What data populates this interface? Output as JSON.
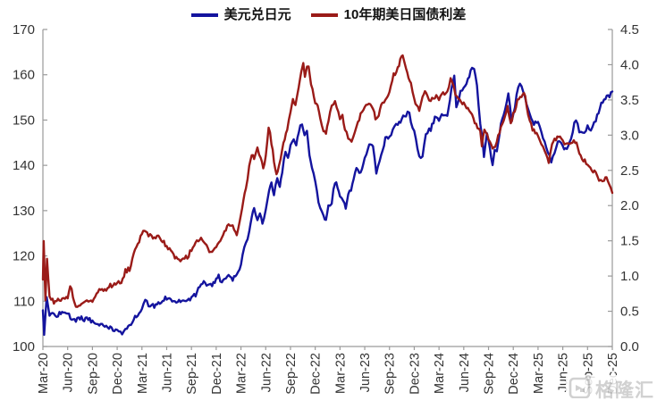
{
  "legend": {
    "items": [
      {
        "label": "美元兑日元",
        "color": "#14149E"
      },
      {
        "label": "10年期美日国债利差",
        "color": "#9A1B18"
      }
    ]
  },
  "watermark": {
    "text": "格隆汇",
    "icon": "gelonghui-logo-icon"
  },
  "chart_data": {
    "type": "line",
    "title": "",
    "grid": false,
    "legend_position": "top-center",
    "x_axis": {
      "unit": "months since Mar-2020",
      "tick_months": [
        0,
        3,
        6,
        9,
        12,
        15,
        18,
        21,
        24,
        27,
        30,
        33,
        36,
        39,
        42,
        45,
        48,
        51,
        54,
        57,
        60,
        63,
        66,
        69
      ],
      "tick_labels": [
        "Mar-20",
        "Jun-20",
        "Sep-20",
        "Dec-20",
        "Mar-21",
        "Jun-21",
        "Sep-21",
        "Dec-21",
        "Mar-22",
        "Jun-22",
        "Sep-22",
        "Dec-22",
        "Mar-23",
        "Jun-23",
        "Sep-23",
        "Dec-23",
        "Mar-24",
        "Jun-24",
        "Sep-24",
        "Dec-24",
        "Mar-25",
        "Jun-25",
        "Sep-25",
        "Dec-25"
      ]
    },
    "y_axis_left": {
      "min": 100,
      "max": 170,
      "step": 10,
      "tick_labels": [
        "100",
        "110",
        "120",
        "130",
        "140",
        "150",
        "160",
        "170"
      ],
      "series": "美元兑日元"
    },
    "y_axis_right": {
      "min": 0,
      "max": 4.5,
      "step": 0.5,
      "tick_labels": [
        "0.0",
        "0.5",
        "1.0",
        "1.5",
        "2.0",
        "2.5",
        "3.0",
        "3.5",
        "4.0",
        "4.5"
      ],
      "series": "10年期美日国债利差"
    },
    "series": [
      {
        "name": "美元兑日元",
        "color": "#14149E",
        "axis": "left",
        "x_months": [
          0,
          0.15,
          0.45,
          0.8,
          1,
          1.5,
          2,
          2.5,
          3,
          3.5,
          4,
          4.5,
          5,
          5.5,
          6,
          6.5,
          7,
          7.5,
          8,
          8.5,
          9,
          9.6,
          10,
          10.5,
          11,
          11.5,
          12,
          12.4,
          12.8,
          13,
          13.5,
          14,
          14.5,
          15,
          15.5,
          16,
          16.5,
          17,
          17.5,
          18,
          18.5,
          19,
          19.5,
          20,
          20.5,
          21,
          21.3,
          21.7,
          22,
          22.5,
          23,
          23.5,
          24,
          24.4,
          24.8,
          25,
          25.3,
          25.6,
          26,
          26.3,
          26.6,
          27,
          27.4,
          27.7,
          28,
          28.4,
          28.7,
          29,
          29.4,
          29.7,
          30,
          30.4,
          30.7,
          31,
          31.4,
          31.7,
          32,
          32.3,
          32.6,
          33,
          33.4,
          34,
          34.3,
          34.6,
          35,
          35.4,
          35.7,
          36,
          36.4,
          36.7,
          37,
          37.5,
          38,
          38.5,
          39,
          39.4,
          39.7,
          40,
          40.4,
          40.8,
          41,
          41.5,
          42,
          42.4,
          43,
          43.5,
          44,
          44.4,
          44.8,
          45,
          45.4,
          45.8,
          46,
          46.4,
          46.8,
          47,
          47.5,
          48,
          48.5,
          49,
          49.5,
          49.85,
          50.1,
          50.6,
          51,
          51.5,
          52,
          52.25,
          52.6,
          53,
          53.3,
          53.45,
          53.8,
          54,
          54.5,
          54.75,
          55,
          55.5,
          56,
          56.4,
          56.8,
          57,
          57.6,
          58,
          58.4,
          59,
          59.5,
          60,
          60.4,
          61,
          61.6,
          62,
          62.4,
          63,
          63.5,
          64,
          64.6,
          65,
          65.4,
          66,
          66.4,
          67,
          67.5,
          68,
          68.5,
          69
        ],
        "values": [
          108,
          102.9,
          111,
          107,
          107.7,
          106.5,
          107.3,
          107.8,
          107.4,
          106.1,
          105.9,
          106.3,
          105.9,
          106.2,
          105.5,
          105.3,
          104.7,
          104.5,
          104.3,
          103.8,
          103.5,
          102.8,
          103.8,
          104.6,
          106.2,
          107,
          108.7,
          110.3,
          109.2,
          109.3,
          108.8,
          109.5,
          110,
          110.8,
          110.5,
          109.5,
          110.2,
          109.9,
          109.8,
          111,
          111.5,
          113.5,
          114.2,
          113.2,
          113.8,
          114.8,
          115.5,
          113.8,
          114.7,
          115.5,
          114.9,
          116.2,
          118,
          121.8,
          123.9,
          125.5,
          128.9,
          130.2,
          127.5,
          129.5,
          127.2,
          130,
          134.5,
          136.2,
          133.2,
          137.5,
          135,
          138.8,
          143,
          141.5,
          144,
          145.5,
          144,
          147.5,
          149.4,
          146.5,
          148,
          142,
          139.5,
          136.5,
          132,
          128.8,
          128.2,
          131,
          132,
          136.5,
          135,
          133.5,
          132,
          130.8,
          133.5,
          135.5,
          139.5,
          138.2,
          141.8,
          143.8,
          145,
          144.5,
          138.3,
          141.2,
          142.5,
          145.8,
          146.2,
          147.8,
          149.2,
          150.2,
          151.2,
          151.6,
          148,
          147.2,
          143.8,
          141.2,
          142,
          146.8,
          148.2,
          148,
          150.3,
          150.2,
          151.5,
          151.4,
          156.5,
          160.2,
          153.2,
          156,
          157.3,
          159,
          161.2,
          161.7,
          157.3,
          149.5,
          144.5,
          141.7,
          147.2,
          145.3,
          140,
          143.5,
          143,
          149.3,
          152,
          156.3,
          149.8,
          151,
          157.3,
          157.9,
          155,
          151,
          149.2,
          149.8,
          147.5,
          143.5,
          140.9,
          142.8,
          145.6,
          144.2,
          143.6,
          146,
          150.4,
          147.3,
          147,
          148.5,
          147.2,
          150,
          152.8,
          154.8,
          155,
          156.3
        ]
      },
      {
        "name": "10年期美日国债利差",
        "color": "#9A1B18",
        "axis": "right",
        "x_months": [
          0,
          0.1,
          0.3,
          0.5,
          0.8,
          1,
          1.5,
          2,
          3,
          3.3,
          4,
          4.5,
          5,
          6,
          6.5,
          7,
          7.5,
          8,
          9,
          9.5,
          10,
          10.5,
          11,
          11.5,
          12,
          12.3,
          12.8,
          13,
          13.5,
          14,
          14.5,
          15,
          15.5,
          16,
          16.5,
          17,
          17.5,
          18,
          18.5,
          19,
          19.5,
          20,
          20.5,
          21,
          21.5,
          22,
          22.5,
          23,
          23.5,
          24,
          24.3,
          24.6,
          25,
          25.3,
          25.6,
          26,
          26.4,
          26.7,
          27,
          27.35,
          27.7,
          28,
          28.3,
          28.6,
          29,
          29.3,
          29.6,
          30,
          30.3,
          30.6,
          31,
          31.3,
          31.55,
          31.75,
          32,
          32.2,
          32.5,
          33,
          33.3,
          33.6,
          34,
          34.3,
          34.6,
          35,
          35.4,
          36,
          36.3,
          36.6,
          37,
          37.4,
          37.8,
          38,
          38.5,
          39,
          39.5,
          40,
          40.3,
          40.7,
          41,
          41.5,
          42,
          42.5,
          43,
          43.3,
          43.6,
          44,
          44.3,
          44.6,
          45,
          45.3,
          45.6,
          46,
          46.3,
          46.6,
          47,
          47.5,
          48,
          48.5,
          49,
          49.4,
          49.8,
          50,
          50.5,
          51,
          51.5,
          52,
          52.5,
          53,
          53.2,
          53.5,
          54,
          54.5,
          54.8,
          55,
          55.5,
          56,
          56.3,
          56.7,
          57,
          57.5,
          58,
          58.3,
          58.6,
          59,
          59.5,
          60,
          60.4,
          61,
          61.3,
          61.7,
          62,
          62.5,
          63,
          63.4,
          64,
          64.5,
          65,
          65.5,
          66,
          66.5,
          67,
          67.4,
          68,
          68.3,
          68.6,
          69
        ],
        "values": [
          0.95,
          1.48,
          0.68,
          1.24,
          0.7,
          0.66,
          0.62,
          0.67,
          0.7,
          0.86,
          0.57,
          0.55,
          0.66,
          0.66,
          0.72,
          0.82,
          0.8,
          0.86,
          0.9,
          0.93,
          1.07,
          1.1,
          1.34,
          1.45,
          1.6,
          1.67,
          1.57,
          1.6,
          1.52,
          1.55,
          1.5,
          1.42,
          1.35,
          1.25,
          1.22,
          1.28,
          1.26,
          1.38,
          1.47,
          1.52,
          1.5,
          1.38,
          1.35,
          1.42,
          1.48,
          1.65,
          1.72,
          1.75,
          1.55,
          1.85,
          2.1,
          2.25,
          2.55,
          2.72,
          2.65,
          2.8,
          2.68,
          2.52,
          2.72,
          3.12,
          2.9,
          2.62,
          2.42,
          2.55,
          2.78,
          2.95,
          3.08,
          3.3,
          3.52,
          3.45,
          3.7,
          3.88,
          4.0,
          3.82,
          3.95,
          3.98,
          3.7,
          3.48,
          3.42,
          3.25,
          3.05,
          3.02,
          3.22,
          3.42,
          3.45,
          3.25,
          3.3,
          3.08,
          2.98,
          2.92,
          3.05,
          3.15,
          3.28,
          3.4,
          3.45,
          3.38,
          3.22,
          3.3,
          3.42,
          3.48,
          3.6,
          3.85,
          3.95,
          4.05,
          4.13,
          3.95,
          3.8,
          3.72,
          3.55,
          3.4,
          3.35,
          3.52,
          3.62,
          3.55,
          3.48,
          3.55,
          3.52,
          3.58,
          3.65,
          3.78,
          3.72,
          3.6,
          3.48,
          3.45,
          3.38,
          3.28,
          3.15,
          3.05,
          2.85,
          3.05,
          2.95,
          2.8,
          2.85,
          2.92,
          3.1,
          3.28,
          3.42,
          3.18,
          3.3,
          3.48,
          3.55,
          3.62,
          3.45,
          3.18,
          3.05,
          3.0,
          2.88,
          2.72,
          2.62,
          2.85,
          2.92,
          3.0,
          2.9,
          2.85,
          2.88,
          2.92,
          2.75,
          2.65,
          2.58,
          2.5,
          2.45,
          2.35,
          2.32,
          2.42,
          2.3,
          2.18
        ]
      }
    ]
  }
}
